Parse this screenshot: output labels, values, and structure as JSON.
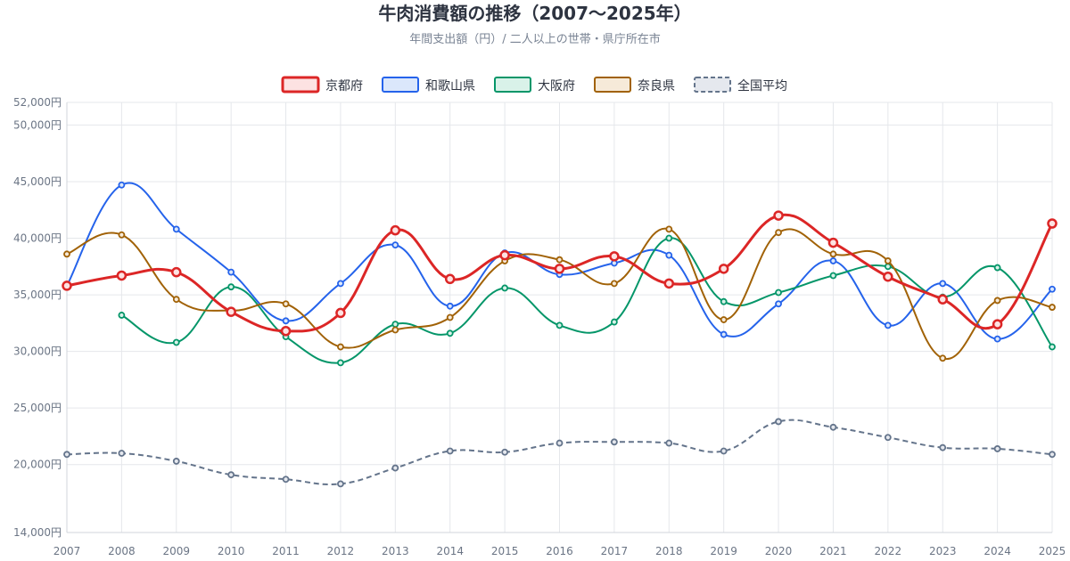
{
  "chart_data": {
    "type": "line",
    "title": "牛肉消費額の推移（2007〜2025年）",
    "subtitle": "年間支出額（円）/ 二人以上の世帯・県庁所在市",
    "x": [
      "2007",
      "2008",
      "2009",
      "2010",
      "2011",
      "2012",
      "2013",
      "2014",
      "2015",
      "2016",
      "2017",
      "2018",
      "2019",
      "2020",
      "2021",
      "2022",
      "2023",
      "2024",
      "2025"
    ],
    "y_ticks": [
      14000,
      20000,
      25000,
      30000,
      35000,
      40000,
      45000,
      50000,
      52000
    ],
    "y_tick_labels": [
      "14,000円",
      "20,000円",
      "25,000円",
      "30,000円",
      "35,000円",
      "40,000円",
      "45,000円",
      "50,000円",
      "52,000円"
    ],
    "ylim": [
      14000,
      52000
    ],
    "grid": true,
    "legend_position": "top-center",
    "series": [
      {
        "name": "京都府",
        "color": "#dc2626",
        "fill": "#fde2e2",
        "dashed": false,
        "bold": true,
        "values": [
          35800,
          36700,
          37000,
          33500,
          31800,
          33400,
          40700,
          36400,
          38500,
          37300,
          38400,
          36000,
          37300,
          42000,
          39600,
          36600,
          34600,
          32400,
          41300
        ]
      },
      {
        "name": "和歌山県",
        "color": "#2563eb",
        "fill": "#dbe7fb",
        "dashed": false,
        "bold": false,
        "values": [
          35800,
          44700,
          40800,
          37000,
          32700,
          36000,
          39400,
          34000,
          38700,
          36800,
          37800,
          38500,
          31500,
          34200,
          38000,
          32300,
          36000,
          31100,
          35500
        ]
      },
      {
        "name": "大阪府",
        "color": "#059669",
        "fill": "#d9f2e9",
        "dashed": false,
        "bold": false,
        "values": [
          null,
          33200,
          30800,
          35700,
          31300,
          29000,
          32400,
          31600,
          35600,
          32300,
          32600,
          40000,
          34400,
          35200,
          36700,
          37500,
          34800,
          37400,
          30400
        ]
      },
      {
        "name": "奈良県",
        "color": "#a16207",
        "fill": "#f6ead9",
        "dashed": false,
        "bold": false,
        "values": [
          38600,
          40300,
          34600,
          33600,
          34200,
          30400,
          31900,
          33000,
          38000,
          38100,
          36000,
          40800,
          32800,
          40500,
          38600,
          38000,
          29400,
          34500,
          33900
        ]
      },
      {
        "name": "全国平均",
        "color": "#64748b",
        "fill": "#e5e8ee",
        "dashed": true,
        "bold": false,
        "values": [
          20900,
          21000,
          20300,
          19100,
          18700,
          18300,
          19700,
          21200,
          21100,
          21900,
          22000,
          21900,
          21200,
          23800,
          23300,
          22400,
          21500,
          21400,
          20900
        ]
      }
    ]
  }
}
